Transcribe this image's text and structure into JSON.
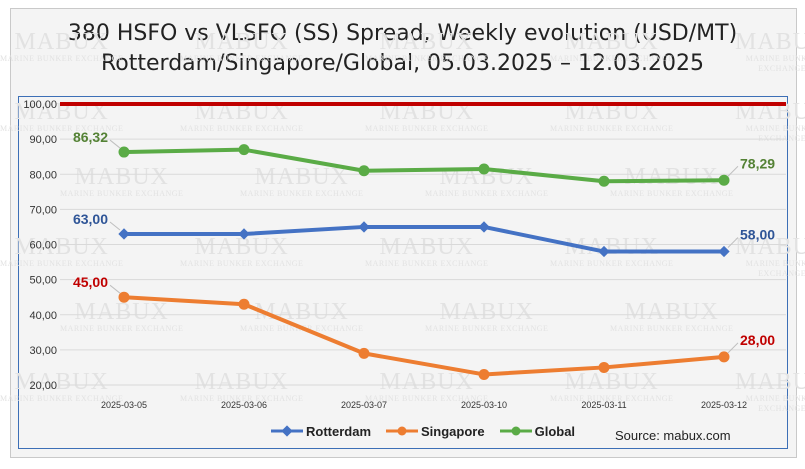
{
  "chart_data": {
    "type": "line",
    "title": "380 HSFO vs VLSFO (SS) Spread, Weekly evolution (USD/MT)",
    "subtitle": "Rotterdam/Singapore/Global, 05.03.2025 – 12.03.2025",
    "categories": [
      "2025-03-05",
      "2025-03-06",
      "2025-03-07",
      "2025-03-10",
      "2025-03-11",
      "2025-03-12"
    ],
    "y_ticks": [
      "20,00",
      "30,00",
      "40,00",
      "50,00",
      "60,00",
      "70,00",
      "80,00",
      "90,00",
      "100,00"
    ],
    "ylim": [
      20,
      100
    ],
    "reference_line": {
      "value": 100,
      "color": "#c00000"
    },
    "grid": true,
    "legend_position": "bottom",
    "series": [
      {
        "name": "Rotterdam",
        "color": "#4472c4",
        "values": [
          63,
          63,
          65,
          65,
          58,
          58
        ],
        "first_label": "63,00",
        "last_label": "58,00"
      },
      {
        "name": "Singapore",
        "color": "#ed7d31",
        "values": [
          45,
          43,
          29,
          23,
          25,
          28
        ],
        "first_label": "45,00",
        "last_label": "28,00"
      },
      {
        "name": "Global",
        "color": "#5aab46",
        "values": [
          86.32,
          87,
          81,
          81.5,
          78,
          78.29
        ],
        "first_label": "86,32",
        "last_label": "78,29"
      }
    ],
    "label_colors": {
      "Rotterdam": "#2f5597",
      "Singapore": "#c00000",
      "Global": "#548235"
    },
    "source": "Source: mabux.com"
  },
  "watermark": {
    "name": "MABUX",
    "tagline": "MARINE BUNKER EXCHANGE"
  }
}
